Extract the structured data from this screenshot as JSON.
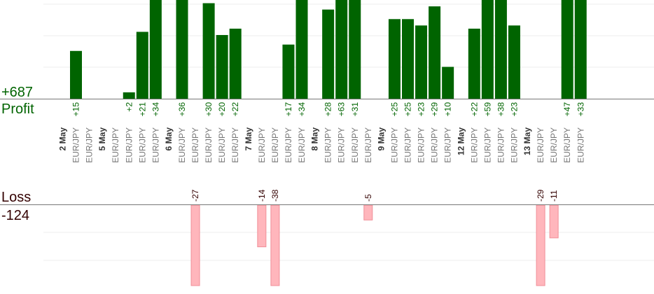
{
  "chart_data": {
    "type": "bar",
    "profit": {
      "label": "Profit",
      "total": "+687",
      "color": "#006400",
      "text_color": "#006400",
      "ylim": [
        0,
        31
      ]
    },
    "loss": {
      "label": "Loss",
      "total": "-124",
      "color": "#ffb6bc",
      "text_color": "#330000",
      "ylim": [
        0,
        27
      ]
    },
    "days": [
      {
        "label": "2 May",
        "trades": [
          {
            "pair": "EUR/JPY",
            "value": 15
          },
          {
            "pair": "EUR/JPY",
            "value": null
          }
        ]
      },
      {
        "label": "5 May",
        "trades": [
          {
            "pair": "EUR/JPY",
            "value": null
          },
          {
            "pair": "EUR/JPY",
            "value": 2
          },
          {
            "pair": "EUR/JPY",
            "value": 21
          },
          {
            "pair": "EUR/JPY",
            "value": 34
          }
        ]
      },
      {
        "label": "6 May",
        "trades": [
          {
            "pair": "EUR/JPY",
            "value": 36
          },
          {
            "pair": "EUR/JPY",
            "value": -27
          },
          {
            "pair": "EUR/JPY",
            "value": 30
          },
          {
            "pair": "EUR/JPY",
            "value": 20
          },
          {
            "pair": "EUR/JPY",
            "value": 22
          }
        ]
      },
      {
        "label": "7 May",
        "trades": [
          {
            "pair": "EUR/JPY",
            "value": -14
          },
          {
            "pair": "EUR/JPY",
            "value": -38
          },
          {
            "pair": "EUR/JPY",
            "value": 17
          },
          {
            "pair": "EUR/JPY",
            "value": 34
          }
        ]
      },
      {
        "label": "8 May",
        "trades": [
          {
            "pair": "EUR/JPY",
            "value": 28
          },
          {
            "pair": "EUR/JPY",
            "value": 63
          },
          {
            "pair": "EUR/JPY",
            "value": 31
          },
          {
            "pair": "EUR/JPY",
            "value": -5
          }
        ]
      },
      {
        "label": "9 May",
        "trades": [
          {
            "pair": "EUR/JPY",
            "value": 25
          },
          {
            "pair": "EUR/JPY",
            "value": 25
          },
          {
            "pair": "EUR/JPY",
            "value": 23
          },
          {
            "pair": "EUR/JPY",
            "value": 29
          },
          {
            "pair": "EUR/JPY",
            "value": 10
          }
        ]
      },
      {
        "label": "12 May",
        "trades": [
          {
            "pair": "EUR/JPY",
            "value": 22
          },
          {
            "pair": "EUR/JPY",
            "value": 59
          },
          {
            "pair": "EUR/JPY",
            "value": 38
          },
          {
            "pair": "EUR/JPY",
            "value": 23
          }
        ]
      },
      {
        "label": "13 May",
        "trades": [
          {
            "pair": "EUR/JPY",
            "value": -29
          },
          {
            "pair": "EUR/JPY",
            "value": -11
          },
          {
            "pair": "EUR/JPY",
            "value": 47
          },
          {
            "pair": "EUR/JPY",
            "value": 33
          }
        ]
      }
    ],
    "grid": true
  }
}
